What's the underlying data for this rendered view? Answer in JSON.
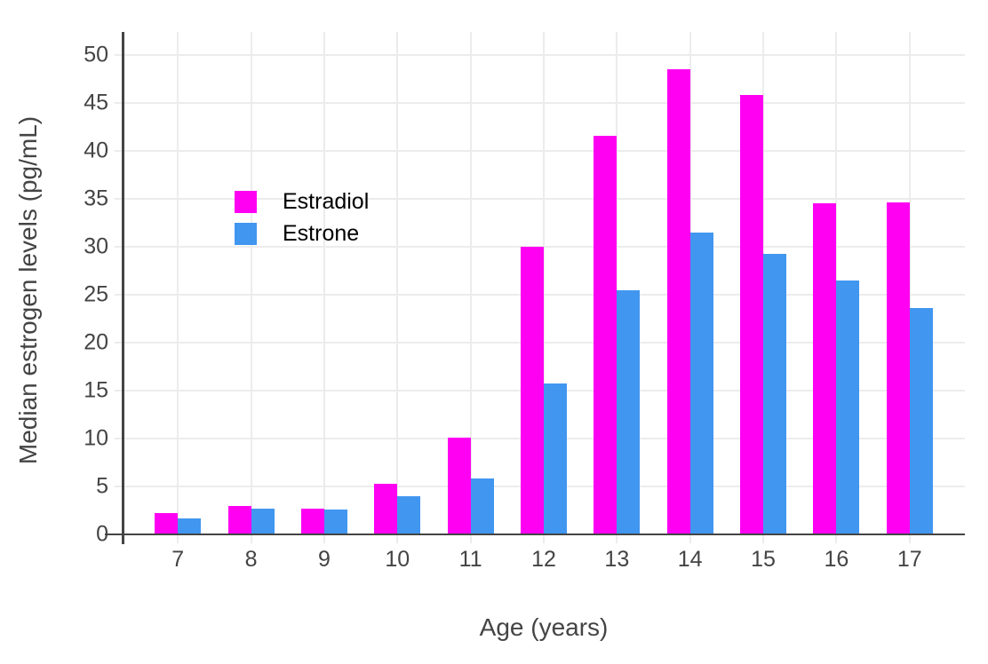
{
  "chart_data": {
    "type": "bar",
    "title": "",
    "xlabel": "Age (years)",
    "ylabel": "Median estrogen levels (pg/mL)",
    "categories": [
      "7",
      "8",
      "9",
      "10",
      "11",
      "12",
      "13",
      "14",
      "15",
      "16",
      "17"
    ],
    "series": [
      {
        "name": "Estradiol",
        "color": "#FF00F2",
        "values": [
          2.2,
          3.0,
          2.7,
          5.3,
          10.1,
          30.0,
          41.6,
          48.5,
          45.8,
          34.5,
          34.6
        ]
      },
      {
        "name": "Estrone",
        "color": "#4196F0",
        "values": [
          1.7,
          2.7,
          2.6,
          4.0,
          5.8,
          15.7,
          25.5,
          31.5,
          29.3,
          26.5,
          23.6
        ]
      }
    ],
    "yticks": [
      0,
      5,
      10,
      15,
      20,
      25,
      30,
      35,
      40,
      45,
      50
    ],
    "ylim": [
      0,
      52.4
    ],
    "grid": true,
    "legend_position": "inside-top-left",
    "background_color": "#FFFFFF",
    "text_color": "#444444",
    "grid_color": "#ECECEC",
    "axis_color": "#444444"
  }
}
